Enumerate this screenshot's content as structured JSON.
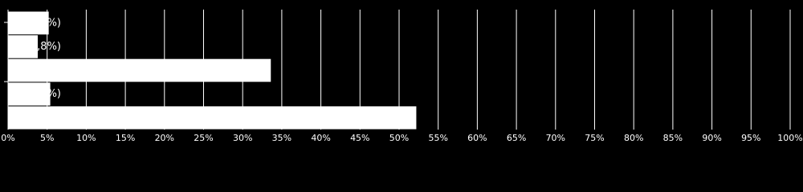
{
  "chart_data": {
    "type": "hbar",
    "categories": [
      null,
      null,
      null,
      null,
      null
    ],
    "values": [
      5.2,
      3.8,
      33.6,
      5.4,
      52.2
    ],
    "color": "#ffffff",
    "annotations": [
      "%)",
      ",8%)",
      null,
      "%)",
      null
    ],
    "xlim": [
      0,
      100
    ],
    "xticks": [
      {
        "value": 0,
        "label": "0%"
      },
      {
        "value": 5,
        "label": "5%"
      },
      {
        "value": 10,
        "label": "10%"
      },
      {
        "value": 15,
        "label": "15%"
      },
      {
        "value": 20,
        "label": "20%"
      },
      {
        "value": 25,
        "label": "25%"
      },
      {
        "value": 30,
        "label": "30%"
      },
      {
        "value": 35,
        "label": "35%"
      },
      {
        "value": 40,
        "label": "40%"
      },
      {
        "value": 45,
        "label": "45%"
      },
      {
        "value": 50,
        "label": "50%"
      },
      {
        "value": 55,
        "label": "55%"
      },
      {
        "value": 60,
        "label": "60%"
      },
      {
        "value": 65,
        "label": "65%"
      },
      {
        "value": 70,
        "label": "70%"
      },
      {
        "value": 75,
        "label": "75%"
      },
      {
        "value": 80,
        "label": "80%"
      },
      {
        "value": 85,
        "label": "85%"
      },
      {
        "value": 90,
        "label": "90%"
      },
      {
        "value": 95,
        "label": "95%"
      },
      {
        "value": 100,
        "label": "100%"
      }
    ],
    "grid": true
  }
}
